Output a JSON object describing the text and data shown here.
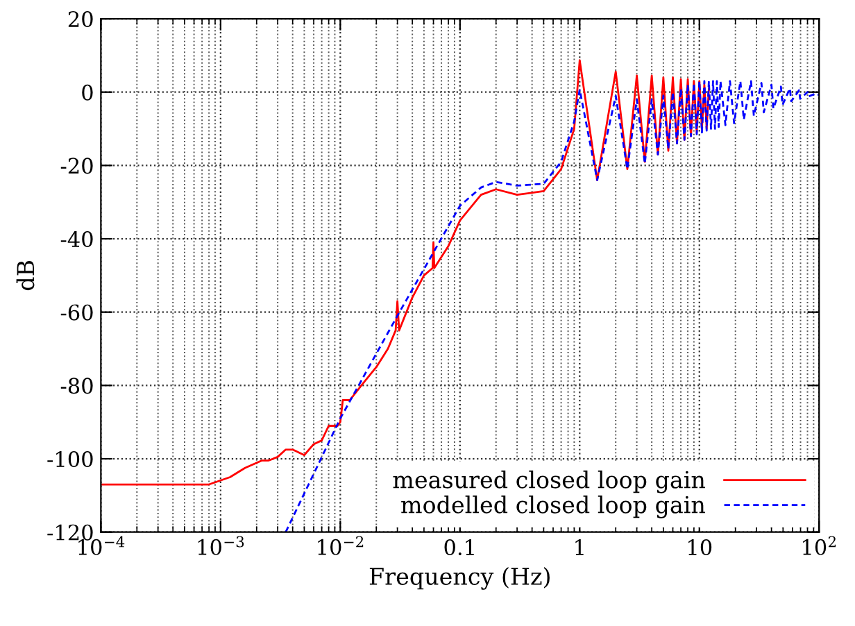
{
  "chart_data": {
    "type": "line",
    "xlabel": "Frequency (Hz)",
    "ylabel": "dB",
    "log": "x",
    "xlim": [
      0.0001,
      100
    ],
    "ylim": [
      -120,
      20
    ],
    "xticks": [
      {
        "value": 0.0001,
        "label": "10$^{−4}$"
      },
      {
        "value": 0.001,
        "label": "10$^{−3}$"
      },
      {
        "value": 0.01,
        "label": "10$^{−2}$"
      },
      {
        "value": 0.1,
        "label": "0.1"
      },
      {
        "value": 1,
        "label": "1"
      },
      {
        "value": 10,
        "label": "10"
      },
      {
        "value": 100,
        "label": "10$^{2}$"
      }
    ],
    "yticks": [
      -120,
      -100,
      -80,
      -60,
      -40,
      -20,
      0,
      20
    ],
    "grid": true,
    "legend": "bottom right",
    "series": [
      {
        "name": "measured closed loop gain",
        "color": "#ff0000",
        "line_style": "solid",
        "x": [
          0.0001,
          0.0008,
          0.0012,
          0.0016,
          0.0022,
          0.0025,
          0.003,
          0.0035,
          0.004,
          0.005,
          0.006,
          0.007,
          0.008,
          0.0095,
          0.01,
          0.0105,
          0.012,
          0.015,
          0.02,
          0.025,
          0.029,
          0.03,
          0.031,
          0.04,
          0.05,
          0.059,
          0.06,
          0.061,
          0.08,
          0.1,
          0.15,
          0.2,
          0.3,
          0.5,
          0.7,
          0.9,
          1.0,
          1.4,
          2.0,
          2.5,
          3.0,
          3.5,
          4.0,
          4.5,
          5.0,
          5.5,
          6.0,
          6.5,
          7.0,
          7.5,
          8.0,
          8.5,
          9.0,
          9.5,
          10.0,
          10.5,
          11.0,
          11.5,
          12.0
        ],
        "values": [
          -107,
          -107,
          -105,
          -102.5,
          -100.5,
          -100.5,
          -99.5,
          -97.5,
          -97.5,
          -99,
          -96,
          -95,
          -91,
          -91,
          -90,
          -84,
          -84,
          -80,
          -75,
          -70,
          -65,
          -57,
          -65,
          -56,
          -50,
          -48,
          -41,
          -48,
          -42,
          -35,
          -28,
          -26.5,
          -28,
          -27,
          -21,
          -10,
          8.7,
          -24,
          5.6,
          -21,
          4.5,
          -19,
          4.5,
          -17,
          4,
          -16,
          4,
          -14,
          3.5,
          -13,
          3.5,
          -12,
          3,
          -11,
          3,
          -10,
          2,
          -10,
          1
        ]
      },
      {
        "name": "modelled closed loop gain",
        "color": "#0000ff",
        "line_style": "dashed",
        "x": [
          0.0035,
          0.01,
          0.03,
          0.1,
          0.15,
          0.2,
          0.3,
          0.5,
          0.7,
          0.9,
          1.0,
          1.4,
          2.0,
          2.5,
          3.0,
          3.5,
          4.0,
          4.5,
          5.0,
          5.5,
          6.0,
          6.5,
          7.0,
          7.5,
          8.0,
          8.5,
          9.0,
          9.5,
          10.0,
          10.5,
          11.0,
          11.5,
          12.0,
          12.5,
          13.0,
          13.5,
          14.0,
          14.5,
          15.0,
          16.5,
          18.0,
          19.5,
          22.0,
          23.5,
          27.0,
          28.5,
          33.0,
          34.5,
          40.0,
          41.5,
          48.0,
          49.5,
          57.0,
          58.5,
          68.0,
          69.5,
          80.0,
          81.5,
          92.0,
          93.5,
          100.0
        ],
        "values": [
          -120,
          -89,
          -61,
          -31,
          -26,
          -24.5,
          -25.5,
          -25,
          -19,
          -8,
          0.7,
          -24,
          -1,
          -21,
          -2,
          -19.5,
          -2,
          -17,
          -1,
          -15.5,
          0,
          -14,
          1,
          -13,
          2,
          -12,
          2.5,
          -11.5,
          3,
          -11,
          3,
          -10.5,
          3,
          -10,
          3,
          -10,
          3,
          -9.5,
          3,
          -9,
          3,
          -8.5,
          3,
          -7.5,
          3,
          -6.5,
          2.5,
          -5.5,
          2,
          -4.5,
          1.5,
          -3.5,
          1,
          -2.5,
          0.5,
          -1.8,
          0,
          -1.2,
          -0.5,
          -0.8,
          -0.7
        ]
      }
    ]
  }
}
